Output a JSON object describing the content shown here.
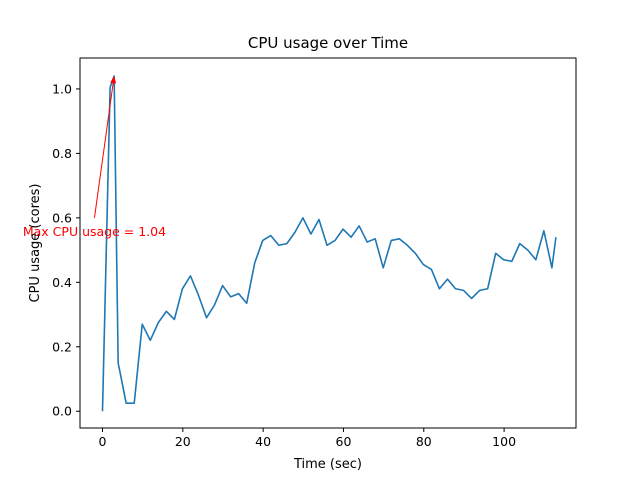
{
  "chart_data": {
    "type": "line",
    "title": "CPU usage over Time",
    "xlabel": "Time (sec)",
    "ylabel": "CPU usage (cores)",
    "xlim": [
      -5.6,
      117.9
    ],
    "ylim": [
      -0.052,
      1.096
    ],
    "xticks": [
      0,
      20,
      40,
      60,
      80,
      100
    ],
    "yticks": [
      0.0,
      0.2,
      0.4,
      0.6,
      0.8,
      1.0
    ],
    "grid": false,
    "line_color": "#1f77b4",
    "series": [
      {
        "x": [
          0,
          1.9,
          2.9,
          3.9,
          5.9,
          7.9,
          9.9,
          11.9,
          13.9,
          15.9,
          17.9,
          19.9,
          21.9,
          23.9,
          25.9,
          27.9,
          29.9,
          31.9,
          33.9,
          35.9,
          37.9,
          39.9,
          41.9,
          43.9,
          45.9,
          47.9,
          49.9,
          51.9,
          53.9,
          55.9,
          57.9,
          59.9,
          61.9,
          63.9,
          65.9,
          67.9,
          69.9,
          71.9,
          73.9,
          75.9,
          77.9,
          79.9,
          81.9,
          83.9,
          85.9,
          87.9,
          89.9,
          91.9,
          93.9,
          95.9,
          97.9,
          99.9,
          101.9,
          103.9,
          105.9,
          107.9,
          109.9,
          111.9,
          112.9
        ],
        "y": [
          0.0,
          1.005,
          1.04,
          0.15,
          0.025,
          0.025,
          0.27,
          0.22,
          0.275,
          0.31,
          0.285,
          0.38,
          0.42,
          0.36,
          0.29,
          0.33,
          0.39,
          0.355,
          0.365,
          0.335,
          0.46,
          0.53,
          0.545,
          0.515,
          0.52,
          0.555,
          0.6,
          0.55,
          0.595,
          0.515,
          0.53,
          0.565,
          0.54,
          0.575,
          0.525,
          0.535,
          0.445,
          0.53,
          0.535,
          0.515,
          0.49,
          0.455,
          0.44,
          0.38,
          0.41,
          0.38,
          0.375,
          0.35,
          0.375,
          0.38,
          0.49,
          0.47,
          0.465,
          0.52,
          0.5,
          0.47,
          0.56,
          0.445,
          0.54
        ]
      }
    ],
    "annotation": {
      "text": "Max CPU usage = 1.04",
      "color": "#ff0000",
      "point": [
        2.9,
        1.04
      ],
      "text_at": [
        -2.0,
        0.6
      ]
    }
  }
}
